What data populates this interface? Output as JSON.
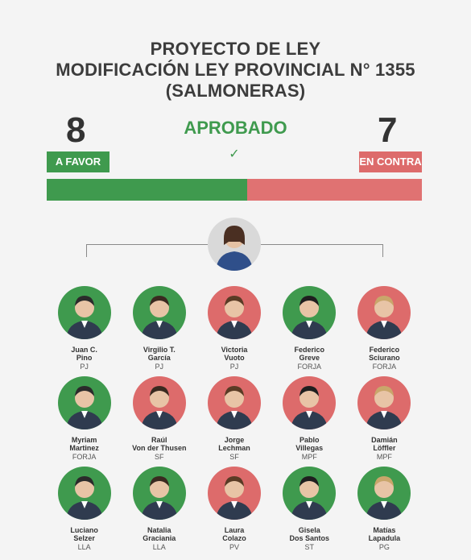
{
  "title": {
    "line1": "PROYECTO DE LEY",
    "line2": "MODIFICACIÓN LEY PROVINCIAL N° 1355",
    "line3": "(SALMONERAS)"
  },
  "result": {
    "status": "APROBADO",
    "icon": "check-icon",
    "favor_count": "8",
    "favor_label": "A FAVOR",
    "contra_count": "7",
    "contra_label": "EN CONTRA",
    "favor_share": 0.5333
  },
  "colors": {
    "favor": "#3f9a4e",
    "contra": "#dd6b6b",
    "background": "#f4f4f4"
  },
  "members": [
    [
      {
        "first": "Juan C.",
        "last": "Pino",
        "party": "PJ",
        "vote": "favor"
      },
      {
        "first": "Virgilio T.",
        "last": "García",
        "party": "PJ",
        "vote": "favor"
      },
      {
        "first": "Victoria",
        "last": "Vuoto",
        "party": "PJ",
        "vote": "contra"
      },
      {
        "first": "Federico",
        "last": "Greve",
        "party": "FORJA",
        "vote": "favor"
      },
      {
        "first": "Federico",
        "last": "Sciurano",
        "party": "FORJA",
        "vote": "contra"
      }
    ],
    [
      {
        "first": "Myriam",
        "last": "Martinez",
        "party": "FORJA",
        "vote": "favor"
      },
      {
        "first": "Raúl",
        "last": "Von der Thusen",
        "party": "SF",
        "vote": "contra"
      },
      {
        "first": "Jorge",
        "last": "Lechman",
        "party": "SF",
        "vote": "contra"
      },
      {
        "first": "Pablo",
        "last": "Villegas",
        "party": "MPF",
        "vote": "contra"
      },
      {
        "first": "Damián",
        "last": "Löffler",
        "party": "MPF",
        "vote": "contra"
      }
    ],
    [
      {
        "first": "Luciano",
        "last": "Selzer",
        "party": "LLA",
        "vote": "favor"
      },
      {
        "first": "Natalia",
        "last": "Graciania",
        "party": "LLA",
        "vote": "favor"
      },
      {
        "first": "Laura",
        "last": "Colazo",
        "party": "PV",
        "vote": "contra"
      },
      {
        "first": "Gisela",
        "last": "Dos Santos",
        "party": "ST",
        "vote": "favor"
      },
      {
        "first": "Matías",
        "last": "Lapadula",
        "party": "PG",
        "vote": "favor"
      }
    ]
  ]
}
